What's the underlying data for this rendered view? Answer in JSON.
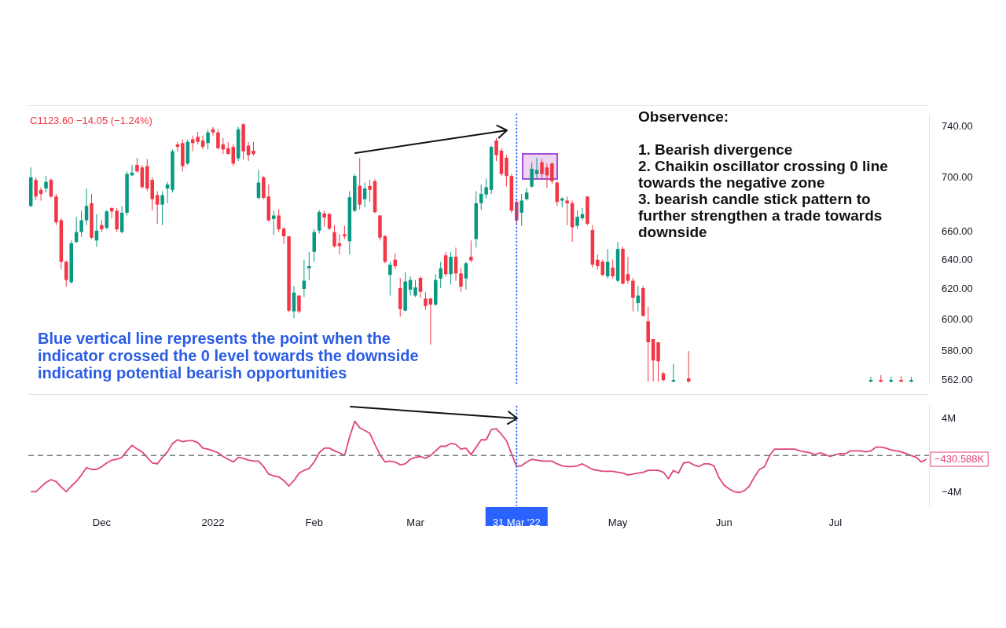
{
  "chart_data": [
    {
      "type": "candlestick",
      "categories": [
        null,
        null,
        null,
        null,
        null,
        null,
        null,
        null,
        null,
        null,
        null,
        null,
        null,
        null,
        "Dec",
        null,
        null,
        null,
        null,
        null,
        null,
        null,
        null,
        null,
        null,
        null,
        null,
        null,
        null,
        null,
        null,
        null,
        null,
        null,
        null,
        null,
        "2022",
        null,
        null,
        null,
        null,
        null,
        null,
        null,
        null,
        null,
        null,
        null,
        null,
        null,
        null,
        null,
        null,
        null,
        null,
        null,
        "Feb",
        null,
        null,
        null,
        null,
        null,
        null,
        null,
        null,
        null,
        null,
        null,
        null,
        null,
        null,
        null,
        null,
        null,
        null,
        null,
        "Mar",
        null,
        null,
        null,
        null,
        null,
        null,
        null,
        null,
        null,
        null,
        null,
        null,
        null,
        null,
        null,
        null,
        null,
        null,
        null,
        "31 Mar '22",
        null,
        null,
        null,
        null,
        null,
        null,
        null,
        null,
        null,
        null,
        null,
        null,
        null,
        null,
        null,
        null,
        null,
        null,
        null,
        "May",
        null,
        null,
        null,
        null,
        null,
        null,
        null,
        null,
        null,
        null,
        null,
        null,
        null,
        null,
        null,
        null,
        null,
        null,
        null,
        null,
        "Jun",
        null,
        null,
        null,
        null,
        null,
        null,
        null,
        null,
        null,
        null,
        null,
        null,
        null,
        null,
        null,
        null,
        null,
        null,
        null,
        null,
        null,
        "Jul",
        null,
        null,
        null,
        null,
        null,
        null,
        null,
        null,
        null,
        null,
        null,
        null,
        null,
        null,
        null,
        null,
        null,
        null
      ],
      "ohlc": [
        [
          679,
          708,
          678,
          700.5
        ],
        [
          698.5,
          700.5,
          683.5,
          686
        ],
        [
          691,
          693,
          683,
          688
        ],
        [
          692,
          701.5,
          689,
          697
        ],
        [
          698.5,
          699.5,
          685,
          686
        ],
        [
          686,
          688,
          665,
          667
        ],
        [
          668.5,
          670,
          634,
          639
        ],
        [
          639,
          640,
          622,
          626.5
        ],
        [
          625,
          654,
          624,
          652
        ],
        [
          653,
          671,
          652,
          660
        ],
        [
          660,
          675.5,
          656.5,
          668.5
        ],
        [
          668.5,
          692,
          665,
          679
        ],
        [
          681,
          688,
          655,
          656
        ],
        [
          654,
          673,
          649.5,
          661
        ],
        [
          665,
          668.5,
          660,
          662
        ],
        [
          663,
          676,
          662,
          675
        ],
        [
          677.5,
          678,
          670,
          675
        ],
        [
          675.5,
          677.5,
          660,
          662
        ],
        [
          660,
          679,
          659,
          674
        ],
        [
          674,
          705,
          672,
          703
        ],
        [
          702,
          710,
          701.5,
          704
        ],
        [
          710,
          715.5,
          704,
          705
        ],
        [
          708,
          710,
          692,
          693
        ],
        [
          709,
          714.5,
          690,
          692
        ],
        [
          698.5,
          700.5,
          675.5,
          684
        ],
        [
          687,
          690,
          666,
          680
        ],
        [
          680,
          690,
          665,
          687
        ],
        [
          692,
          697,
          681,
          695
        ],
        [
          691,
          722,
          689,
          720.5
        ],
        [
          726,
          728,
          720,
          724
        ],
        [
          727,
          730,
          705,
          709
        ],
        [
          711,
          730,
          710,
          728
        ],
        [
          730,
          733,
          720.5,
          727
        ],
        [
          732,
          736,
          726,
          728
        ],
        [
          729,
          733,
          722,
          724
        ],
        [
          727,
          737.5,
          722,
          735.5
        ],
        [
          738,
          740,
          733,
          735.5
        ],
        [
          735.5,
          738,
          722,
          723
        ],
        [
          726,
          731,
          718.5,
          722
        ],
        [
          723,
          728,
          718,
          718.5
        ],
        [
          724,
          726,
          709,
          711
        ],
        [
          715,
          740,
          713,
          738
        ],
        [
          742,
          743,
          714,
          720.5
        ],
        [
          725,
          728,
          713,
          717.5
        ],
        [
          721,
          728,
          717,
          718.5
        ],
        [
          685,
          706,
          684,
          696.5
        ],
        [
          700.5,
          701.5,
          684,
          685
        ],
        [
          686,
          695,
          667.5,
          668.5
        ],
        [
          669.5,
          675.5,
          658,
          672
        ],
        [
          672,
          676.5,
          660,
          662
        ],
        [
          662.5,
          663.5,
          651.5,
          657
        ],
        [
          657,
          657,
          605,
          606
        ],
        [
          605.5,
          622.5,
          601,
          618
        ],
        [
          616,
          616,
          604,
          605.5
        ],
        [
          620.5,
          640.5,
          615,
          626
        ],
        [
          634.5,
          646,
          626.5,
          636
        ],
        [
          646,
          662,
          639,
          660
        ],
        [
          661,
          676,
          659,
          674.5
        ],
        [
          673.5,
          675.5,
          664,
          670.5
        ],
        [
          673,
          674,
          661.5,
          662.5
        ],
        [
          660,
          665,
          649,
          650
        ],
        [
          652,
          658.5,
          644,
          650
        ],
        [
          658.5,
          664.5,
          655,
          657
        ],
        [
          653.5,
          690,
          644,
          685.5
        ],
        [
          675.5,
          703,
          674.5,
          701.5
        ],
        [
          694,
          715.5,
          676.5,
          680
        ],
        [
          684,
          696.5,
          678,
          692
        ],
        [
          694,
          698.5,
          682,
          691
        ],
        [
          697.5,
          699,
          673.5,
          674.5
        ],
        [
          672,
          672.5,
          654,
          656
        ],
        [
          657,
          658,
          638,
          639
        ],
        [
          630,
          639,
          616,
          637
        ],
        [
          640.5,
          645,
          634,
          636
        ],
        [
          621,
          628,
          602,
          607
        ],
        [
          606,
          632,
          605.5,
          625.5
        ],
        [
          620,
          629,
          616,
          626.5
        ],
        [
          616,
          626.5,
          615,
          621.5
        ],
        [
          628,
          629,
          614.5,
          618.5
        ],
        [
          614,
          618.5,
          606.5,
          609
        ],
        [
          614,
          614.5,
          584,
          610
        ],
        [
          610,
          630.5,
          609,
          626.5
        ],
        [
          627.5,
          639,
          621,
          634.5
        ],
        [
          643.5,
          646,
          629,
          630.5
        ],
        [
          630.5,
          646,
          623.5,
          642.5
        ],
        [
          642.5,
          649,
          626,
          631
        ],
        [
          631,
          635,
          618.5,
          622
        ],
        [
          627.5,
          639,
          620,
          638
        ],
        [
          642.5,
          654,
          638.5,
          640
        ],
        [
          655,
          690,
          649,
          681
        ],
        [
          681,
          695,
          676,
          688
        ],
        [
          687.5,
          699.5,
          684.5,
          693
        ],
        [
          691,
          725,
          688,
          724
        ],
        [
          729,
          731,
          713,
          717.5
        ],
        [
          721,
          723,
          701.5,
          703
        ],
        [
          715.5,
          717.5,
          693.5,
          701.5
        ],
        [
          701.5,
          703,
          674,
          675.5
        ],
        [
          682,
          684.5,
          666,
          668.5
        ],
        [
          674,
          688,
          664.5,
          683
        ],
        [
          684,
          692.5,
          683,
          689
        ],
        [
          693.5,
          712,
          692.5,
          707
        ],
        [
          703,
          715.5,
          699.5,
          706
        ],
        [
          712,
          714.5,
          699.5,
          703
        ],
        [
          708,
          711,
          692.5,
          702
        ],
        [
          711,
          712,
          695.5,
          697.5
        ],
        [
          696.5,
          697.5,
          679,
          682
        ],
        [
          683,
          685.5,
          678,
          684.5
        ],
        [
          683,
          686,
          665,
          681
        ],
        [
          681,
          683,
          653,
          663.5
        ],
        [
          664.5,
          675.5,
          662.5,
          671
        ],
        [
          670,
          677.5,
          668.5,
          673
        ],
        [
          686,
          686,
          665,
          666
        ],
        [
          661.5,
          665,
          635,
          637
        ],
        [
          640.5,
          644,
          633.5,
          636
        ],
        [
          639,
          640.5,
          629,
          630
        ],
        [
          629,
          648,
          627.5,
          639
        ],
        [
          635,
          640.5,
          627.5,
          629
        ],
        [
          626,
          653,
          625,
          648
        ],
        [
          648,
          649.5,
          623.5,
          624
        ],
        [
          630.5,
          642.5,
          624,
          626
        ],
        [
          626,
          628,
          605.5,
          614.5
        ],
        [
          611,
          622.5,
          605.5,
          616
        ],
        [
          621,
          622.5,
          602,
          602.5
        ],
        [
          599,
          608.5,
          561,
          585.5
        ],
        [
          587.5,
          587.5,
          561,
          574
        ],
        [
          585.5,
          585.5,
          561,
          573.5
        ],
        [
          566,
          567,
          561,
          562
        ],
        null,
        [
          561,
          572,
          560.5,
          562
        ],
        null,
        null,
        [
          563,
          580,
          560.5,
          561
        ],
        null,
        null,
        null,
        null,
        null,
        null,
        null,
        null,
        null,
        null,
        null,
        null,
        null,
        null,
        null,
        null,
        null,
        null,
        null,
        null,
        null,
        null,
        null,
        null,
        null,
        null,
        null,
        null,
        null,
        null,
        null,
        null,
        null,
        null,
        null,
        [
          561,
          564,
          560.5,
          562
        ],
        null,
        [
          562,
          565,
          560.5,
          561
        ],
        null,
        [
          561,
          564,
          560.5,
          562
        ],
        null,
        [
          562,
          564.5,
          560.5,
          561
        ],
        null,
        [
          561,
          564,
          560.5,
          562
        ],
        null,
        null,
        null
      ],
      "ylim": [
        560,
        750
      ],
      "yticks": [
        {
          "value": 562,
          "label": "562.00"
        },
        {
          "value": 580,
          "label": "580.00"
        },
        {
          "value": 600,
          "label": "600.00"
        },
        {
          "value": 620,
          "label": "620.00"
        },
        {
          "value": 640,
          "label": "640.00"
        },
        {
          "value": 660,
          "label": "660.00"
        },
        {
          "value": 700,
          "label": "700.00"
        },
        {
          "value": 740,
          "label": "740.00"
        }
      ],
      "log": "y",
      "tick_labels": "y",
      "ref_lines": [
        {
          "axis": "x",
          "value": "31 Mar '22",
          "color": "#2962ff",
          "line_style": "dotted"
        }
      ],
      "annotations": [
        "C1123.60 −14.05 (−1.24%)",
        "Blue vertical line represents the point when the indicator crossed the 0 level towards the downside indicating potential bearish opportunities",
        "Observence:",
        "1. Bearish divergence",
        "2. Chaikin oscillator crossing 0 line towards the negative zone",
        "3. bearish candle stick pattern to further strengthen a trade towards downside"
      ]
    },
    {
      "type": "line",
      "categories": [
        null,
        null,
        null,
        null,
        null,
        null,
        null,
        null,
        null,
        null,
        null,
        null,
        null,
        null,
        "Dec",
        null,
        null,
        null,
        null,
        null,
        null,
        null,
        null,
        null,
        null,
        null,
        null,
        null,
        null,
        null,
        null,
        null,
        null,
        null,
        null,
        null,
        "2022",
        null,
        null,
        null,
        null,
        null,
        null,
        null,
        null,
        null,
        null,
        null,
        null,
        null,
        null,
        null,
        null,
        null,
        null,
        null,
        "Feb",
        null,
        null,
        null,
        null,
        null,
        null,
        null,
        null,
        null,
        null,
        null,
        null,
        null,
        null,
        null,
        null,
        null,
        null,
        null,
        "Mar",
        null,
        null,
        null,
        null,
        null,
        null,
        null,
        null,
        null,
        null,
        null,
        null,
        null,
        null,
        null,
        null,
        null,
        null,
        null,
        "31 Mar '22",
        null,
        null,
        null,
        null,
        null,
        null,
        null,
        null,
        null,
        null,
        null,
        null,
        null,
        null,
        null,
        null,
        null,
        null,
        null,
        "May",
        null,
        null,
        null,
        null,
        null,
        null,
        null,
        null,
        null,
        null,
        null,
        null,
        null,
        null,
        null,
        null,
        null,
        null,
        null,
        null,
        "Jun",
        null,
        null,
        null,
        null,
        null,
        null,
        null,
        null,
        null,
        null,
        null,
        null,
        null,
        null,
        null,
        null,
        null,
        null,
        null,
        null,
        null,
        "Jul",
        null,
        null,
        null,
        null,
        null,
        null,
        null,
        null,
        null,
        null,
        null,
        null,
        null,
        null,
        null,
        null,
        null,
        null
      ],
      "series": [
        {
          "color": "#e0457b",
          "values": [
            -3900000,
            -3900000,
            -3400000,
            -2900000,
            -2600000,
            -2800000,
            -3400000,
            -3900000,
            -3300000,
            -2800000,
            -2100000,
            -1300000,
            -1500000,
            -1500000,
            -1200000,
            -800000,
            -500000,
            -400000,
            -200000,
            500000,
            1100000,
            700000,
            400000,
            -200000,
            -800000,
            -900000,
            -200000,
            400000,
            1300000,
            1700000,
            1500000,
            1600000,
            1600000,
            1400000,
            800000,
            700000,
            500000,
            300000,
            -100000,
            -400000,
            -700000,
            -200000,
            -300000,
            -500000,
            -600000,
            -600000,
            -1200000,
            -2000000,
            -2200000,
            -2300000,
            -2700000,
            -3300000,
            -2700000,
            -1900000,
            -1600000,
            -1400000,
            -700000,
            300000,
            800000,
            800000,
            500000,
            300000,
            0,
            2000000,
            3700000,
            3000000,
            2700000,
            2400000,
            1200000,
            100000,
            -700000,
            -600000,
            -700000,
            -1000000,
            -900000,
            -400000,
            -200000,
            -100000,
            -300000,
            0,
            500000,
            1000000,
            1000000,
            1300000,
            1200000,
            700000,
            800000,
            100000,
            900000,
            1700000,
            1700000,
            2800000,
            2900000,
            2300000,
            1600000,
            200000,
            -1200000,
            -1100000,
            -700000,
            -400000,
            -500000,
            -600000,
            -600000,
            -600000,
            -900000,
            -1100000,
            -1200000,
            -1200000,
            -1100000,
            -900000,
            -1200000,
            -1500000,
            -1600000,
            -1700000,
            -1700000,
            -1700000,
            -1800000,
            -1900000,
            -2100000,
            -2000000,
            -1900000,
            -1800000,
            -1600000,
            -1600000,
            -1600000,
            -1800000,
            -2500000,
            -1600000,
            -1900000,
            -800000,
            -700000,
            -1000000,
            -1200000,
            -900000,
            -900000,
            -1100000,
            -2400000,
            -3200000,
            -3600000,
            -3900000,
            -4000000,
            -3800000,
            -3300000,
            -2300000,
            -1500000,
            -1200000,
            0,
            700000,
            700000,
            700000,
            700000,
            700000,
            500000,
            400000,
            300000,
            100000,
            300000,
            100000,
            -100000,
            100000,
            200000,
            200000,
            500000,
            500000,
            500000,
            400000,
            500000,
            900000,
            900000,
            800000,
            600000,
            500000,
            400000,
            200000,
            0,
            -200000,
            -700000,
            -400000
          ]
        }
      ],
      "ylim": [
        -5400000,
        5300000
      ],
      "yticks": [
        {
          "value": -4000000,
          "label": "−4M"
        },
        {
          "value": 4000000,
          "label": "4M"
        }
      ],
      "ref_lines": [
        {
          "axis": "y",
          "value": 0,
          "color": "#787b86",
          "line_style": "dashed"
        },
        {
          "axis": "x",
          "value": "31 Mar '22",
          "color": "#2962ff",
          "line_style": "dotted"
        }
      ],
      "annotations": [
        "−430.588K"
      ]
    }
  ]
}
